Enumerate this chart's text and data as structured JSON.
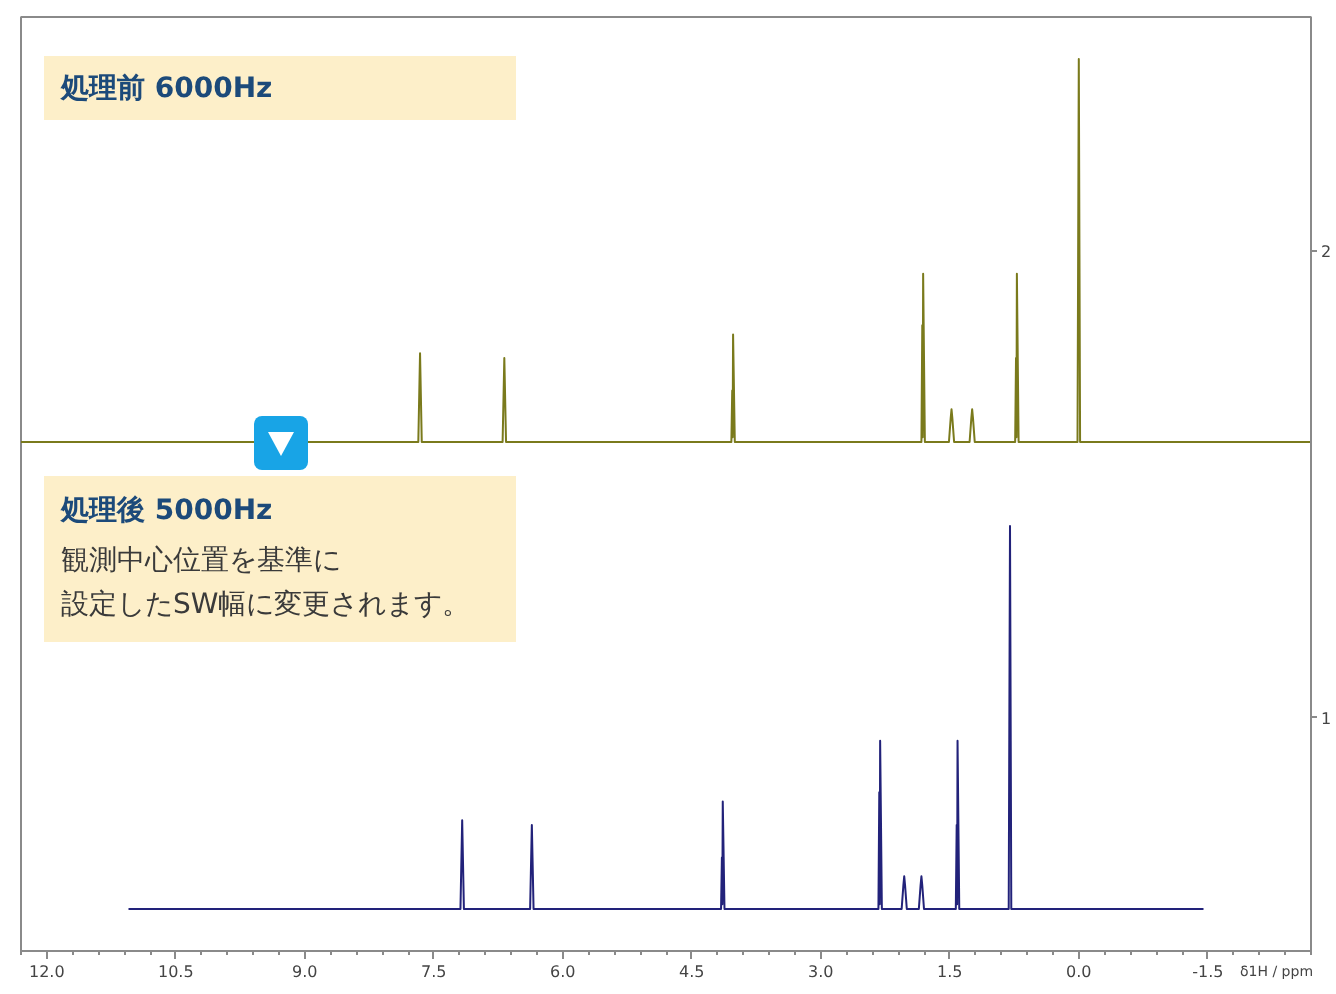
{
  "chart_data": {
    "type": "line",
    "xlabel": "δ1H / ppm",
    "xlim": [
      12.3,
      -2.7
    ],
    "xticks": [
      {
        "value": 12,
        "label": "12.0"
      },
      10.5,
      {
        "value": 9,
        "label": "9.0"
      },
      7.5,
      {
        "value": 6,
        "label": "6.0"
      },
      4.5,
      {
        "value": 3,
        "label": "3.0"
      },
      1.5,
      {
        "value": 0,
        "label": "0.0"
      },
      -1.5
    ],
    "ylim": [
      0.5,
      2.5
    ],
    "yticks": [
      1,
      2
    ],
    "grid": false,
    "line_style": "solid",
    "annotations": [
      "処理前 6000Hz",
      "処理後 5000Hz",
      "観測中心位置を基準に",
      "設定したSW幅に変更されます。"
    ],
    "series": [
      {
        "color": "#22227a",
        "x": [
          11.05,
          7.19,
          7.17,
          7.15,
          6.38,
          6.36,
          6.34,
          4.16,
          4.15,
          4.145,
          4.14,
          4.12,
          2.33,
          2.32,
          2.315,
          2.31,
          2.29,
          2.06,
          2.04,
          2.03,
          2.02,
          2.0,
          1.86,
          1.84,
          1.83,
          1.82,
          1.8,
          1.43,
          1.42,
          1.415,
          1.41,
          1.39,
          0.815,
          0.8,
          0.785,
          -1.45
        ],
        "values": [
          0.59,
          0.59,
          0.78,
          0.59,
          0.59,
          0.77,
          0.59,
          0.59,
          0.7,
          0.6,
          0.82,
          0.59,
          0.59,
          0.84,
          0.6,
          0.95,
          0.59,
          0.59,
          0.64,
          0.66,
          0.64,
          0.59,
          0.59,
          0.64,
          0.66,
          0.64,
          0.59,
          0.59,
          0.77,
          0.6,
          0.95,
          0.59,
          0.59,
          1.41,
          0.59,
          0.59
        ]
      },
      {
        "color": "#7a7a1c",
        "x": [
          12.3,
          7.68,
          7.66,
          7.64,
          6.7,
          6.68,
          6.66,
          4.04,
          4.03,
          4.025,
          4.02,
          4.0,
          1.83,
          1.82,
          1.815,
          1.81,
          1.79,
          1.51,
          1.49,
          1.48,
          1.47,
          1.45,
          1.27,
          1.25,
          1.24,
          1.23,
          1.21,
          0.74,
          0.73,
          0.725,
          0.72,
          0.7,
          0.015,
          0.0,
          -0.015,
          -2.7
        ],
        "values": [
          1.59,
          1.59,
          1.78,
          1.59,
          1.59,
          1.77,
          1.59,
          1.59,
          1.7,
          1.6,
          1.82,
          1.59,
          1.59,
          1.84,
          1.6,
          1.95,
          1.59,
          1.59,
          1.64,
          1.66,
          1.64,
          1.59,
          1.59,
          1.64,
          1.66,
          1.64,
          1.59,
          1.59,
          1.77,
          1.6,
          1.95,
          1.59,
          1.59,
          2.41,
          1.59,
          1.59
        ]
      }
    ]
  }
}
